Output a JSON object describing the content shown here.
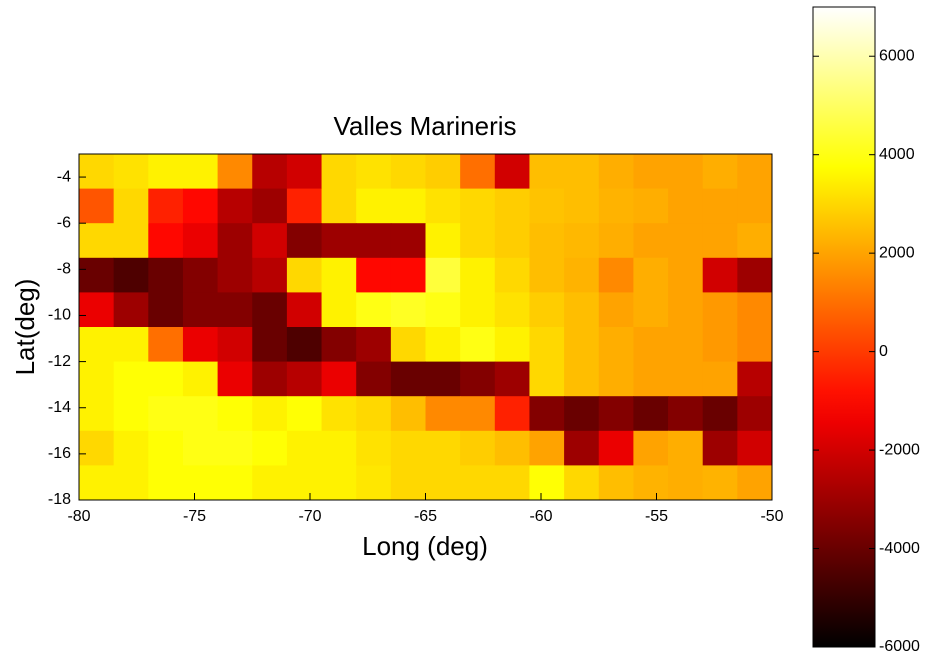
{
  "chart_data": {
    "type": "heatmap",
    "title": "Valles Marineris",
    "x_label": "Long (deg)",
    "y_label": "Lat(deg)",
    "x": [
      -79.25,
      -77.75,
      -76.25,
      -74.75,
      -73.25,
      -71.75,
      -70.25,
      -68.75,
      -67.25,
      -65.75,
      -64.25,
      -62.75,
      -61.25,
      -59.75,
      -58.25,
      -56.75,
      -55.25,
      -53.75,
      -52.25,
      -50.75
    ],
    "y": [
      -3.75,
      -5.25,
      -6.75,
      -8.25,
      -9.75,
      -11.25,
      -12.75,
      -14.25,
      -15.75,
      -17.25
    ],
    "values": [
      [
        3000,
        3200,
        3500,
        3500,
        1500,
        -2500,
        -2000,
        3000,
        3200,
        3000,
        2800,
        1000,
        -2000,
        2500,
        2500,
        2200,
        2000,
        2000,
        2200,
        2000
      ],
      [
        500,
        3000,
        -500,
        -1000,
        -2500,
        -3000,
        -500,
        3000,
        3500,
        3500,
        3200,
        3000,
        2800,
        2600,
        2500,
        2300,
        2200,
        2000,
        2000,
        2000
      ],
      [
        3000,
        3000,
        -1000,
        -1500,
        -3000,
        -2000,
        -3500,
        -3000,
        -3000,
        -3000,
        3500,
        3000,
        2800,
        2500,
        2400,
        2200,
        2000,
        2000,
        2000,
        2200
      ],
      [
        -4000,
        -4500,
        -4000,
        -3500,
        -3000,
        -2500,
        3000,
        3500,
        -1000,
        -1000,
        4500,
        3500,
        3000,
        2500,
        2300,
        1500,
        2200,
        2000,
        -2000,
        -3000
      ],
      [
        -1500,
        -3000,
        -4000,
        -3500,
        -3500,
        -4000,
        -2000,
        3500,
        4000,
        4200,
        4000,
        3500,
        3200,
        2800,
        2500,
        2000,
        2200,
        2000,
        1800,
        1500
      ],
      [
        3500,
        3500,
        1000,
        -1500,
        -2000,
        -4000,
        -4500,
        -3500,
        -3000,
        3000,
        3500,
        4000,
        3500,
        3000,
        2500,
        2200,
        2000,
        2000,
        1800,
        1500
      ],
      [
        3500,
        3800,
        3800,
        3500,
        -1500,
        -3000,
        -2500,
        -1500,
        -3500,
        -4000,
        -4000,
        -3500,
        -3000,
        3000,
        2500,
        2200,
        2000,
        2000,
        2000,
        -2500
      ],
      [
        3500,
        3800,
        4000,
        4000,
        3800,
        3500,
        3800,
        3200,
        3000,
        2500,
        1500,
        1500,
        -500,
        -3500,
        -4000,
        -3500,
        -4000,
        -3500,
        -4000,
        -3000
      ],
      [
        3000,
        3500,
        3800,
        4000,
        4000,
        3800,
        3500,
        3500,
        3200,
        3000,
        3000,
        2800,
        2500,
        2000,
        -3000,
        -1500,
        2000,
        2200,
        -3000,
        -2000
      ],
      [
        3500,
        3500,
        3800,
        3800,
        3800,
        3500,
        3500,
        3500,
        3300,
        3000,
        3000,
        3000,
        3000,
        3800,
        3000,
        2500,
        2300,
        2200,
        2300,
        2000
      ]
    ],
    "colormap": "hot",
    "clim": [
      -6000,
      7000
    ],
    "colorbar_ticks": [
      -6000,
      -4000,
      -2000,
      0,
      2000,
      4000,
      6000
    ],
    "xlim": [
      -80,
      -50
    ],
    "ylim": [
      -18,
      -3
    ],
    "xticks": [
      -80,
      -75,
      -70,
      -65,
      -60,
      -55,
      -50
    ],
    "yticks": [
      -18,
      -16,
      -14,
      -12,
      -10,
      -8,
      -6,
      -4
    ]
  }
}
